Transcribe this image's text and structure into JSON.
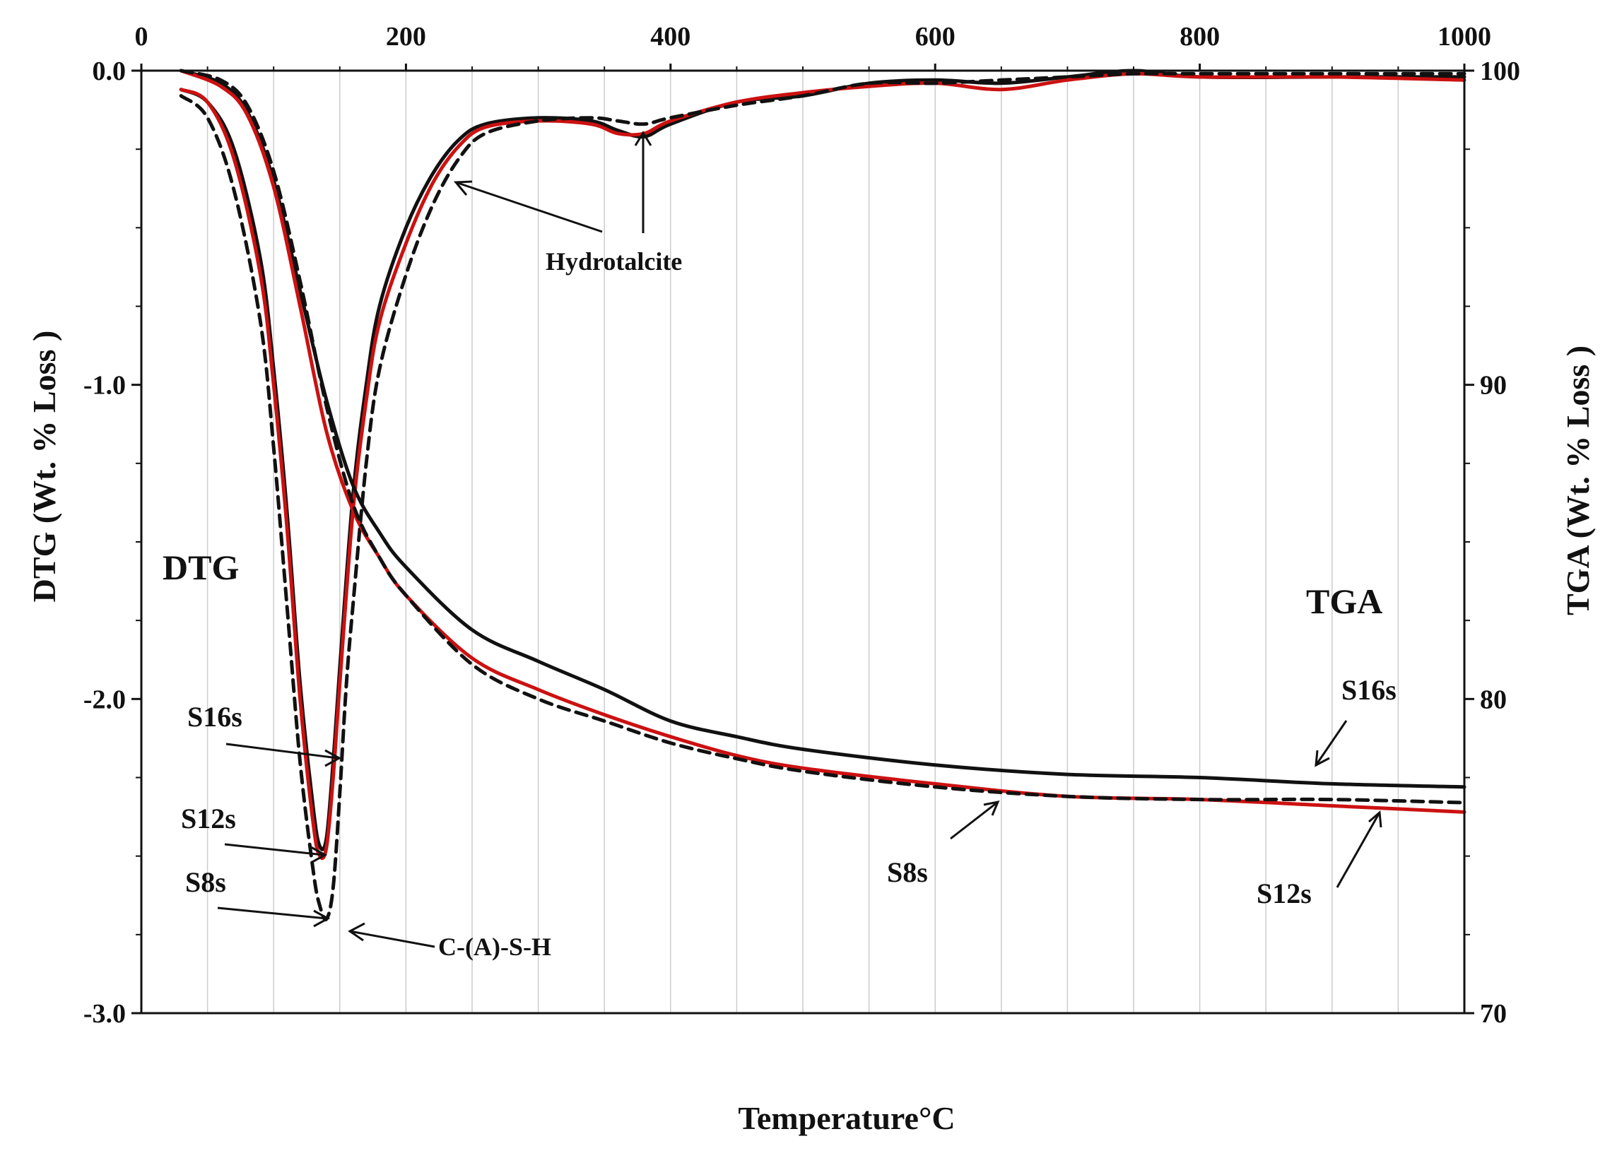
{
  "chart_data": {
    "type": "line",
    "title": "",
    "xlabel": "Temperature°C",
    "ylabel_left": "DTG (Wt.  % Loss )",
    "ylabel_right": "TGA (Wt. % Loss )",
    "xlim": [
      0,
      1000
    ],
    "ylim_left": [
      -3.0,
      0.0
    ],
    "ylim_right": [
      70,
      100
    ],
    "x_ticks": [
      "0",
      "200",
      "400",
      "600",
      "800",
      "1000"
    ],
    "y_left_ticks": [
      "0.0",
      "-1.0",
      "-2.0",
      "-3.0"
    ],
    "y_right_ticks": [
      "100",
      "90",
      "80",
      "70"
    ],
    "grid": true,
    "colors": {
      "black": "#111111",
      "red": "#cc1111",
      "grid": "#cccccc"
    },
    "section_labels": {
      "dtg": "DTG",
      "tga": "TGA"
    },
    "annotations": {
      "csh": "C-(A)-S-H",
      "hydrotalcite": "Hydrotalcite"
    },
    "series_labels": {
      "dtg_s16": "S16s",
      "dtg_s12": "S12s",
      "dtg_s8": "S8s",
      "tga_s16": "S16s",
      "tga_s8": "S8s",
      "tga_s12": "S12s"
    },
    "series": [
      {
        "name": "S16s DTG",
        "axis": "left",
        "color": "#111111",
        "dash": false,
        "x": [
          30,
          50,
          70,
          90,
          100,
          110,
          120,
          130,
          135,
          140,
          145,
          150,
          160,
          170,
          180,
          200,
          220,
          240,
          260,
          300,
          340,
          360,
          380,
          400,
          450,
          500,
          550,
          600,
          650,
          700,
          750,
          800,
          900,
          1000
        ],
        "y": [
          -0.06,
          -0.1,
          -0.25,
          -0.6,
          -0.95,
          -1.4,
          -1.95,
          -2.35,
          -2.47,
          -2.44,
          -2.2,
          -1.9,
          -1.35,
          -1.0,
          -0.75,
          -0.5,
          -0.33,
          -0.22,
          -0.17,
          -0.15,
          -0.16,
          -0.19,
          -0.21,
          -0.17,
          -0.1,
          -0.08,
          -0.04,
          -0.03,
          -0.04,
          -0.02,
          0.0,
          -0.02,
          -0.02,
          -0.02
        ]
      },
      {
        "name": "S12s DTG",
        "axis": "left",
        "color": "#cc1111",
        "dash": false,
        "x": [
          30,
          50,
          70,
          90,
          100,
          110,
          120,
          130,
          135,
          140,
          145,
          150,
          160,
          170,
          180,
          200,
          220,
          240,
          260,
          300,
          340,
          360,
          380,
          400,
          450,
          500,
          550,
          600,
          650,
          700,
          750,
          800,
          900,
          1000
        ],
        "y": [
          -0.06,
          -0.1,
          -0.28,
          -0.65,
          -1.0,
          -1.45,
          -2.0,
          -2.4,
          -2.5,
          -2.47,
          -2.25,
          -1.95,
          -1.4,
          -1.05,
          -0.8,
          -0.55,
          -0.36,
          -0.24,
          -0.18,
          -0.16,
          -0.17,
          -0.2,
          -0.2,
          -0.16,
          -0.1,
          -0.07,
          -0.05,
          -0.04,
          -0.06,
          -0.03,
          -0.01,
          -0.02,
          -0.02,
          -0.03
        ]
      },
      {
        "name": "S8s DTG",
        "axis": "left",
        "color": "#111111",
        "dash": true,
        "x": [
          30,
          50,
          70,
          90,
          100,
          110,
          120,
          130,
          135,
          140,
          145,
          150,
          155,
          160,
          170,
          180,
          200,
          220,
          240,
          260,
          300,
          340,
          360,
          380,
          400,
          450,
          500,
          550,
          600,
          650,
          700,
          750,
          800,
          900,
          1000
        ],
        "y": [
          -0.08,
          -0.15,
          -0.38,
          -0.8,
          -1.2,
          -1.7,
          -2.2,
          -2.55,
          -2.66,
          -2.7,
          -2.6,
          -2.3,
          -1.95,
          -1.7,
          -1.25,
          -0.95,
          -0.65,
          -0.43,
          -0.28,
          -0.2,
          -0.16,
          -0.15,
          -0.16,
          -0.17,
          -0.15,
          -0.11,
          -0.08,
          -0.04,
          -0.04,
          -0.03,
          -0.02,
          -0.01,
          -0.01,
          -0.01,
          -0.01
        ]
      },
      {
        "name": "S16s TGA",
        "axis": "right",
        "color": "#111111",
        "dash": false,
        "x": [
          30,
          60,
          80,
          100,
          120,
          140,
          160,
          180,
          200,
          250,
          300,
          350,
          400,
          450,
          500,
          600,
          700,
          800,
          900,
          1000
        ],
        "y": [
          100,
          99.6,
          98.7,
          96.5,
          93,
          89.5,
          86.8,
          85.3,
          84.2,
          82.2,
          81.2,
          80.3,
          79.3,
          78.8,
          78.4,
          77.9,
          77.6,
          77.5,
          77.3,
          77.2
        ]
      },
      {
        "name": "S12s TGA",
        "axis": "right",
        "color": "#cc1111",
        "dash": false,
        "x": [
          30,
          60,
          80,
          100,
          120,
          140,
          160,
          180,
          200,
          250,
          300,
          350,
          400,
          450,
          500,
          600,
          700,
          800,
          900,
          1000
        ],
        "y": [
          100,
          99.5,
          98.6,
          96.3,
          92.5,
          88.5,
          86,
          84.5,
          83.3,
          81.3,
          80.3,
          79.5,
          78.8,
          78.2,
          77.8,
          77.3,
          76.9,
          76.8,
          76.6,
          76.4
        ]
      },
      {
        "name": "S8s TGA",
        "axis": "right",
        "color": "#111111",
        "dash": true,
        "x": [
          30,
          60,
          80,
          100,
          120,
          140,
          160,
          180,
          200,
          250,
          300,
          350,
          400,
          450,
          500,
          600,
          700,
          800,
          900,
          1000
        ],
        "y": [
          100,
          99.7,
          98.9,
          96.8,
          93.3,
          89.3,
          86.2,
          84.5,
          83.3,
          81.1,
          80,
          79.3,
          78.6,
          78.1,
          77.7,
          77.2,
          76.9,
          76.8,
          76.8,
          76.7
        ]
      }
    ]
  }
}
